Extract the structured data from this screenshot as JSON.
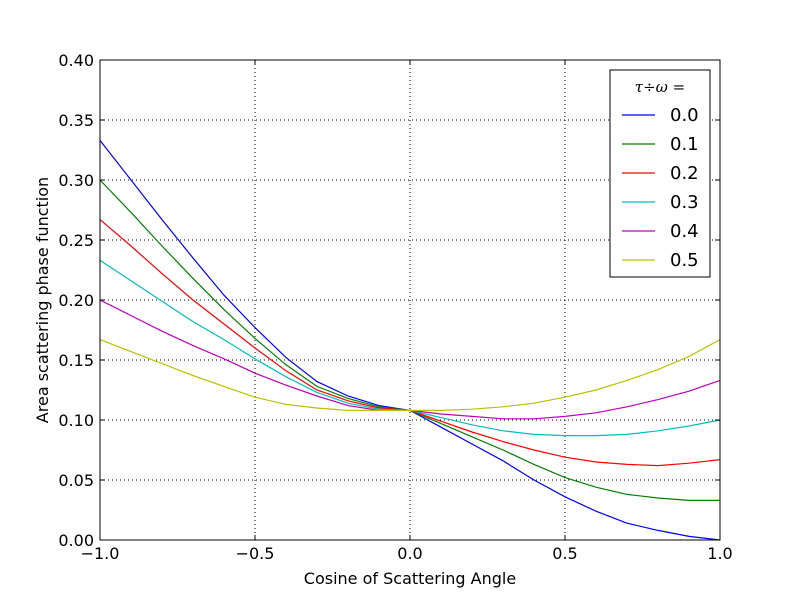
{
  "chart_data": {
    "type": "line",
    "xlabel": "Cosine of Scattering Angle",
    "ylabel": "Area scattering phase function",
    "xlim": [
      -1.0,
      1.0
    ],
    "ylim": [
      0.0,
      0.4
    ],
    "xticks": [
      -1.0,
      -0.5,
      0.0,
      0.5,
      1.0
    ],
    "xtick_labels": [
      "−1.0",
      "−0.5",
      "0.0",
      "0.5",
      "1.0"
    ],
    "yticks": [
      0.0,
      0.05,
      0.1,
      0.15,
      0.2,
      0.25,
      0.3,
      0.35,
      0.4
    ],
    "ytick_labels": [
      "0.00",
      "0.05",
      "0.10",
      "0.15",
      "0.20",
      "0.25",
      "0.30",
      "0.35",
      "0.40"
    ],
    "grid": true,
    "legend": {
      "title": "τ÷ω =",
      "placement": "top-right"
    },
    "x": [
      -1.0,
      -0.9,
      -0.8,
      -0.7,
      -0.6,
      -0.5,
      -0.4,
      -0.3,
      -0.2,
      -0.1,
      0.0,
      0.1,
      0.2,
      0.3,
      0.4,
      0.5,
      0.6,
      0.7,
      0.8,
      0.9,
      1.0
    ],
    "series": [
      {
        "name": "0.0",
        "color": "#0000ff",
        "values": [
          0.333,
          0.3,
          0.267,
          0.235,
          0.204,
          0.177,
          0.152,
          0.132,
          0.12,
          0.112,
          0.108,
          0.094,
          0.08,
          0.066,
          0.05,
          0.036,
          0.024,
          0.014,
          0.008,
          0.003,
          0.0
        ]
      },
      {
        "name": "0.1",
        "color": "#008000",
        "values": [
          0.3,
          0.273,
          0.245,
          0.218,
          0.192,
          0.168,
          0.146,
          0.128,
          0.118,
          0.111,
          0.108,
          0.097,
          0.086,
          0.075,
          0.063,
          0.052,
          0.044,
          0.038,
          0.035,
          0.033,
          0.033
        ]
      },
      {
        "name": "0.2",
        "color": "#ff0000",
        "values": [
          0.267,
          0.245,
          0.222,
          0.2,
          0.18,
          0.16,
          0.141,
          0.125,
          0.116,
          0.11,
          0.108,
          0.099,
          0.09,
          0.082,
          0.075,
          0.069,
          0.065,
          0.063,
          0.062,
          0.064,
          0.067
        ]
      },
      {
        "name": "0.3",
        "color": "#00bfbf",
        "values": [
          0.233,
          0.216,
          0.199,
          0.182,
          0.167,
          0.151,
          0.136,
          0.123,
          0.114,
          0.109,
          0.108,
          0.102,
          0.096,
          0.091,
          0.088,
          0.087,
          0.087,
          0.088,
          0.091,
          0.095,
          0.1
        ]
      },
      {
        "name": "0.4",
        "color": "#bf00bf",
        "values": [
          0.2,
          0.187,
          0.174,
          0.162,
          0.151,
          0.139,
          0.129,
          0.12,
          0.112,
          0.108,
          0.108,
          0.105,
          0.103,
          0.101,
          0.101,
          0.103,
          0.106,
          0.111,
          0.117,
          0.124,
          0.133
        ]
      },
      {
        "name": "0.5",
        "color": "#bfbf00",
        "values": [
          0.167,
          0.157,
          0.147,
          0.137,
          0.128,
          0.119,
          0.113,
          0.11,
          0.108,
          0.108,
          0.108,
          0.108,
          0.109,
          0.111,
          0.114,
          0.119,
          0.125,
          0.133,
          0.142,
          0.153,
          0.167
        ]
      }
    ]
  }
}
